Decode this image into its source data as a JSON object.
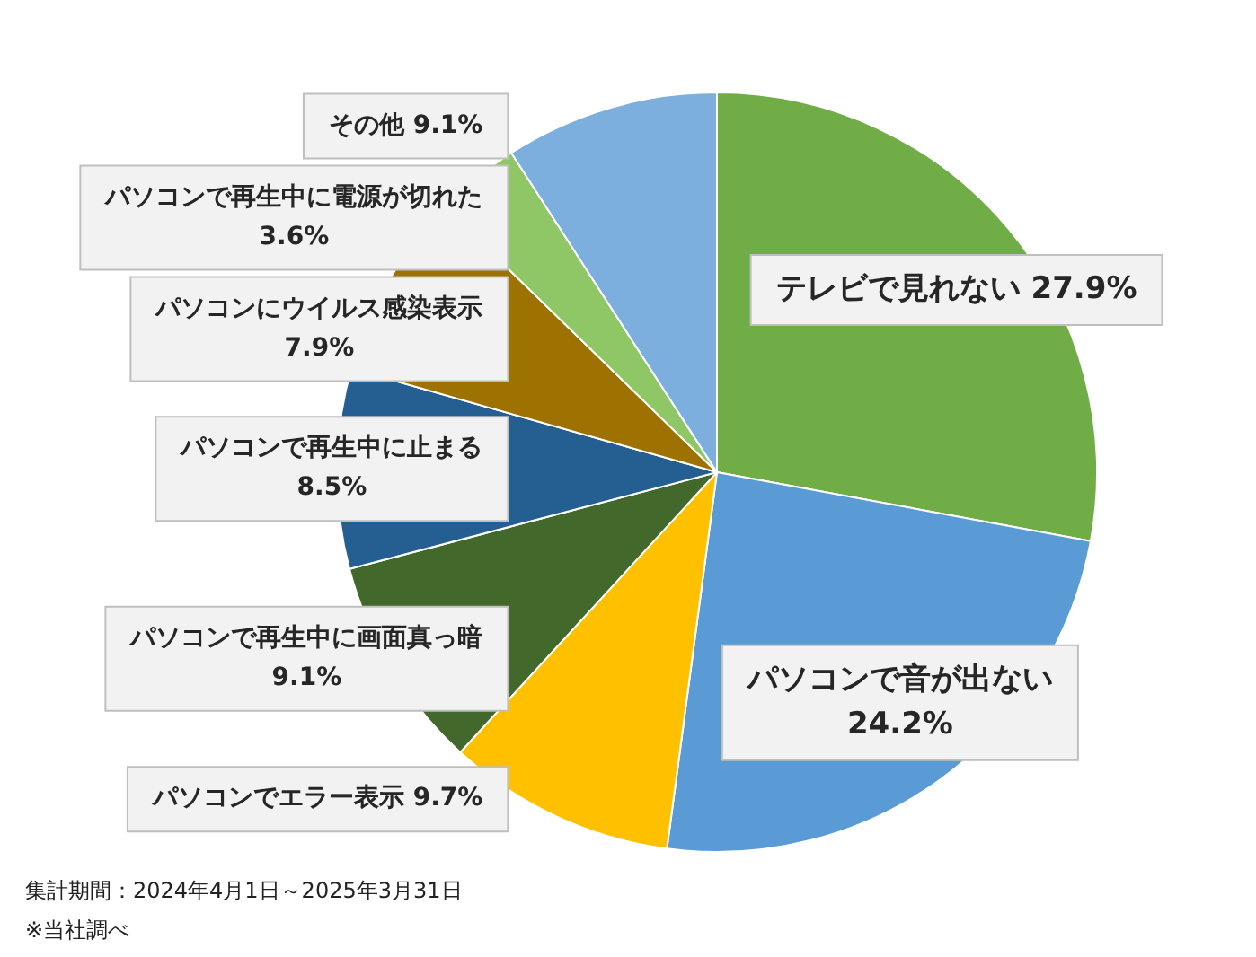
{
  "chart_data": {
    "type": "pie",
    "categories": [
      "テレビで見れない",
      "パソコンで音が出ない",
      "パソコンでエラー表示",
      "パソコンで再生中に画面真っ暗",
      "パソコンで再生中に止まる",
      "パソコンにウイルス感染表示",
      "パソコンで再生中に電源が切れた",
      "その他"
    ],
    "values": [
      27.9,
      24.2,
      9.7,
      9.1,
      8.5,
      7.9,
      3.6,
      9.1
    ],
    "value_labels": [
      "27.9%",
      "24.2%",
      "9.7%",
      "9.1%",
      "8.5%",
      "7.9%",
      "3.6%",
      "9.1%"
    ],
    "colors": [
      "#70ad47",
      "#5b9bd5",
      "#ffc000",
      "#43682b",
      "#255e91",
      "#9e7200",
      "#8fc666",
      "#7cafdd"
    ],
    "legend": false,
    "annotations": [
      "集計期間：2024年4月1日～2025年3月31日",
      "※当社調べ"
    ]
  }
}
